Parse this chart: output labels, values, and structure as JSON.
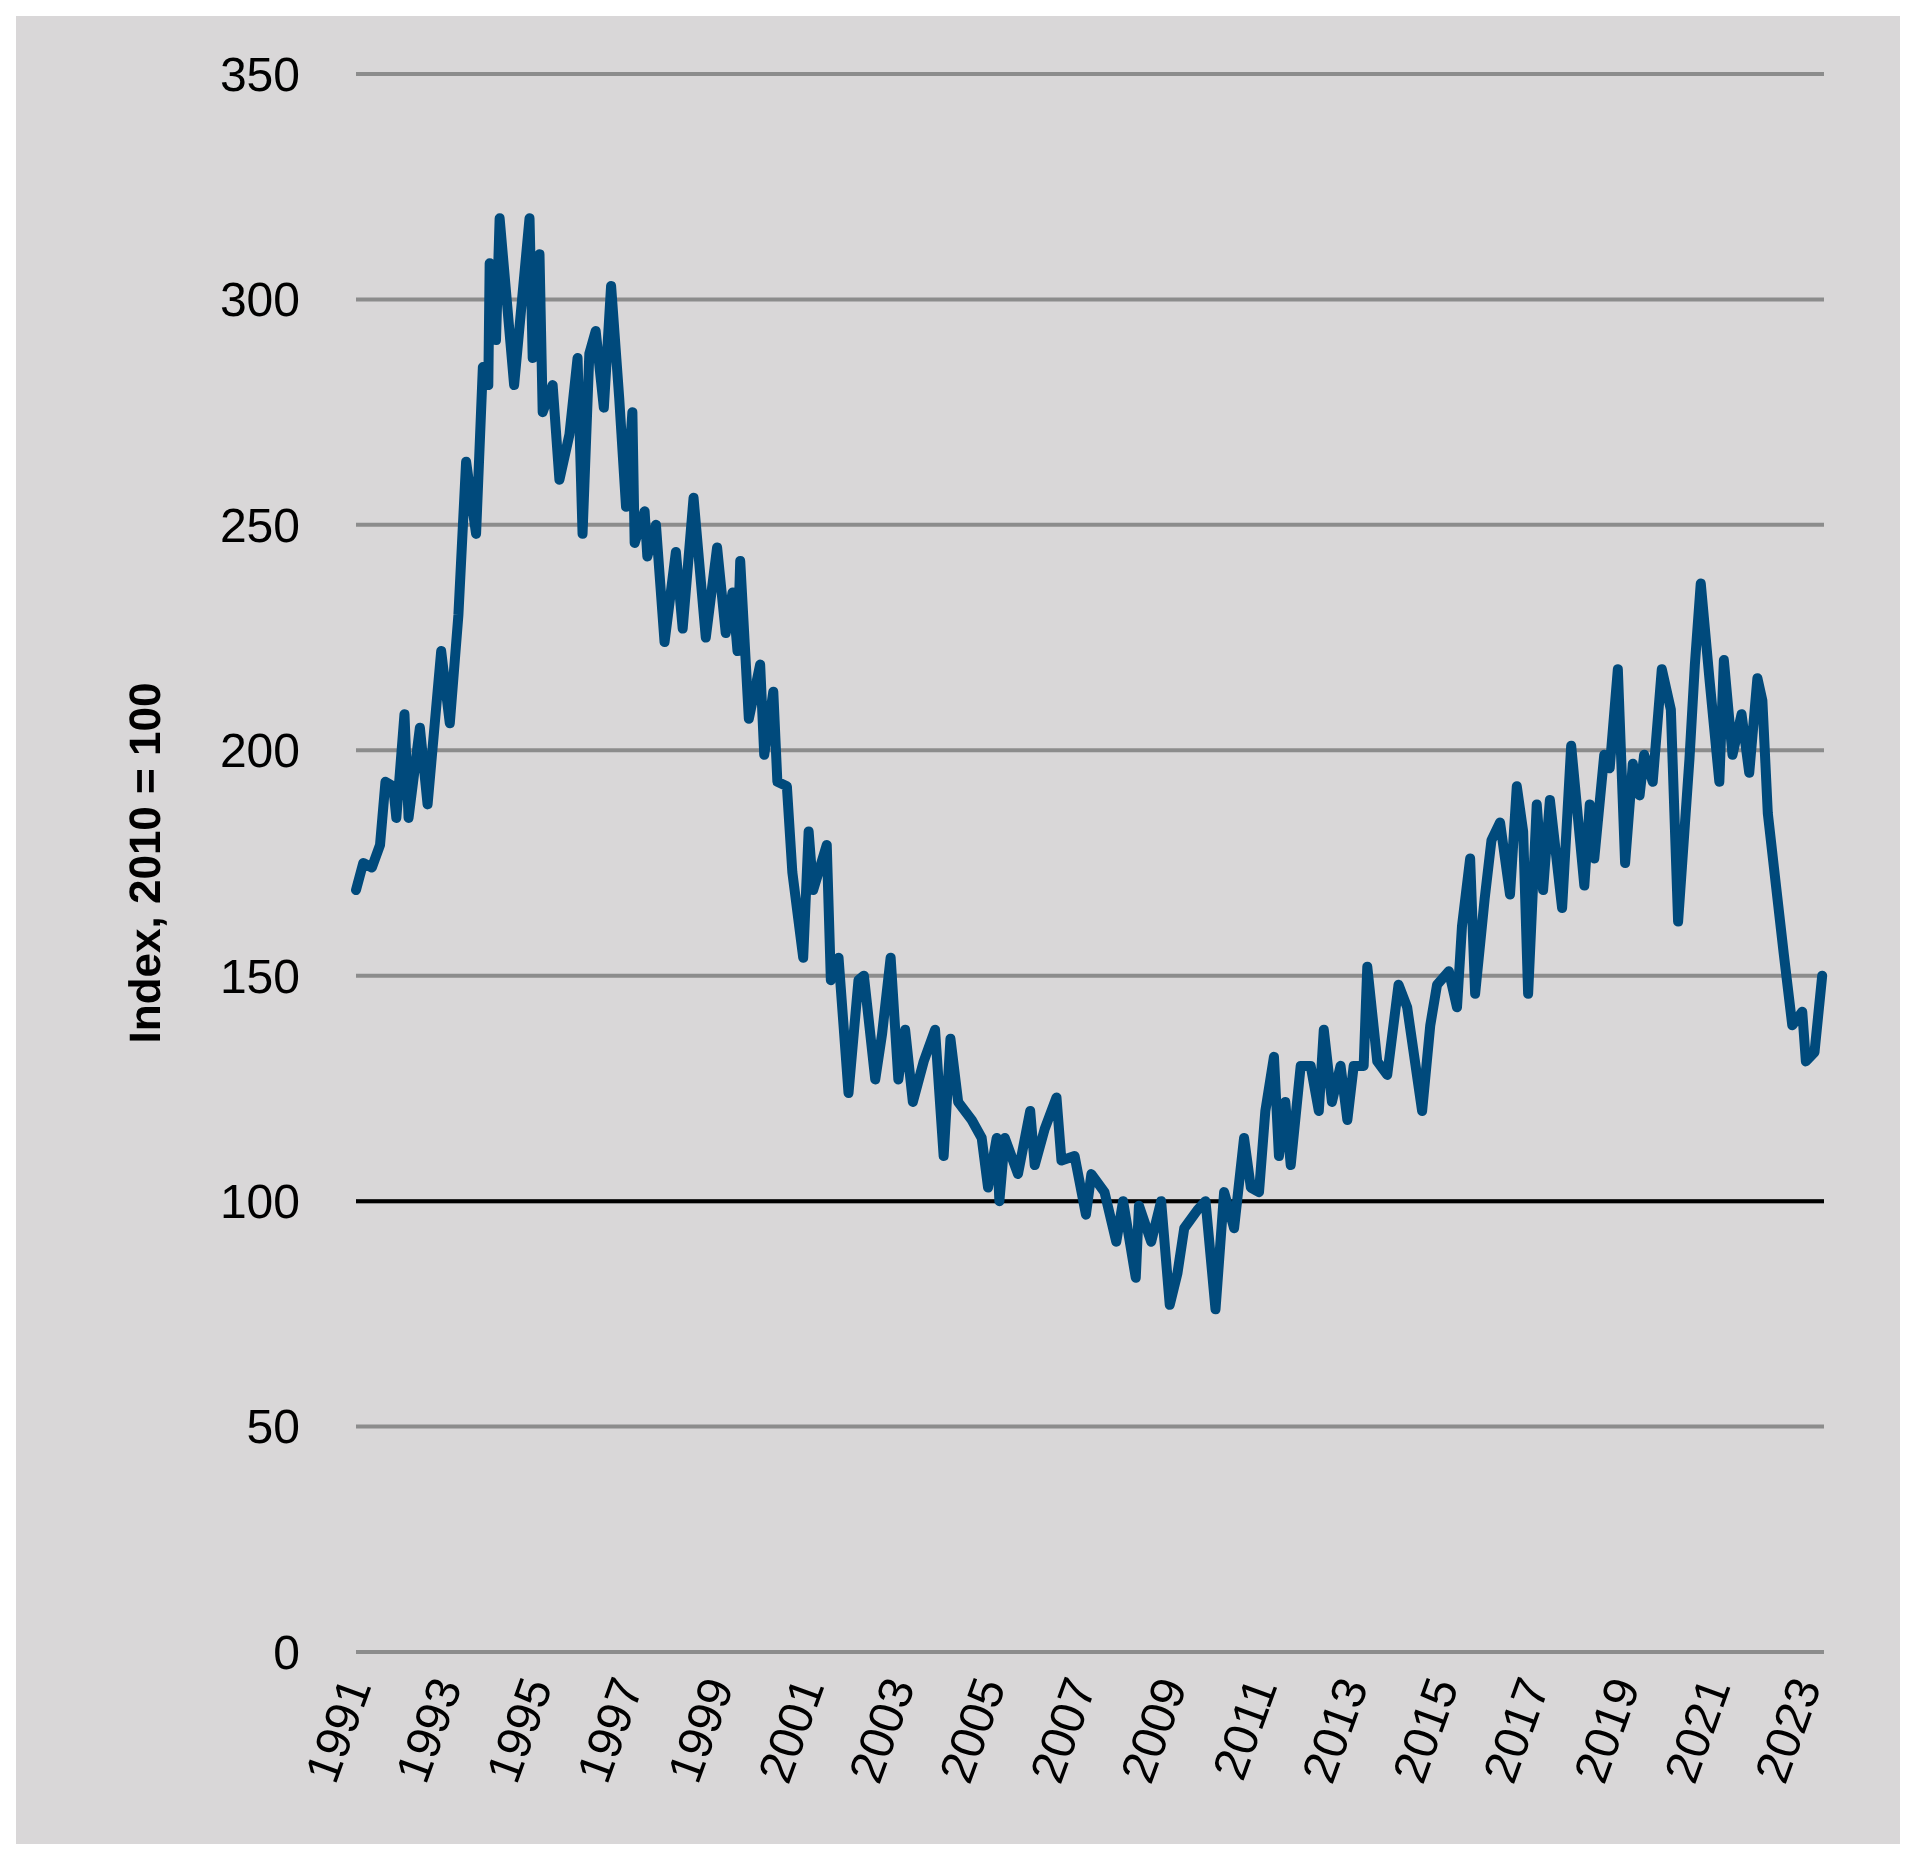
{
  "chart_data": {
    "type": "line",
    "ylabel": "Index, 2010 = 100",
    "xlim": [
      1991,
      2023.4
    ],
    "xticks": [
      1991,
      1993,
      1995,
      1997,
      1999,
      2001,
      2003,
      2005,
      2007,
      2009,
      2011,
      2013,
      2015,
      2017,
      2019,
      2021,
      2023
    ],
    "ylim": [
      0,
      350
    ],
    "yticks": [
      0,
      50,
      100,
      150,
      200,
      250,
      300,
      350
    ],
    "grid": "y",
    "ref_lines": [
      {
        "axis": "y",
        "value": 100,
        "color": "#000000"
      }
    ],
    "series": [
      {
        "color": "#004a7c",
        "x": [
          1991.0,
          1991.16,
          1991.35,
          1991.53,
          1991.65,
          1991.82,
          1991.89,
          1992.07,
          1992.16,
          1992.41,
          1992.58,
          1992.88,
          1993.07,
          1993.26,
          1993.43,
          1993.65,
          1993.8,
          1993.92,
          1993.95,
          1994.09,
          1994.17,
          1994.49,
          1994.83,
          1994.9,
          1995.05,
          1995.12,
          1995.34,
          1995.49,
          1995.71,
          1995.89,
          1996.0,
          1996.15,
          1996.29,
          1996.47,
          1996.63,
          1996.81,
          1996.96,
          1997.1,
          1997.15,
          1997.37,
          1997.43,
          1997.62,
          1997.81,
          1998.06,
          1998.21,
          1998.45,
          1998.72,
          1998.97,
          1999.16,
          1999.31,
          1999.42,
          1999.48,
          1999.67,
          1999.92,
          2000.01,
          2000.21,
          2000.3,
          2000.51,
          2000.63,
          2000.87,
          2000.99,
          2001.09,
          2001.39,
          2001.48,
          2001.65,
          2001.87,
          2002.09,
          2002.21,
          2002.46,
          2002.61,
          2002.8,
          2002.97,
          2003.12,
          2003.29,
          2003.53,
          2003.78,
          2003.97,
          2004.12,
          2004.29,
          2004.59,
          2004.81,
          2004.95,
          2005.14,
          2005.2,
          2005.32,
          2005.61,
          2005.88,
          2005.98,
          2006.2,
          2006.46,
          2006.57,
          2006.86,
          2007.11,
          2007.23,
          2007.52,
          2007.78,
          2007.93,
          2008.21,
          2008.28,
          2008.55,
          2008.77,
          2008.96,
          2009.13,
          2009.28,
          2009.57,
          2009.75,
          2009.97,
          2010.16,
          2010.38,
          2010.6,
          2010.75,
          2010.93,
          2011.07,
          2011.26,
          2011.37,
          2011.51,
          2011.63,
          2011.85,
          2012.07,
          2012.25,
          2012.36,
          2012.54,
          2012.73,
          2012.88,
          2013.02,
          2013.24,
          2013.32,
          2013.54,
          2013.76,
          2014.01,
          2014.2,
          2014.53,
          2014.71,
          2014.86,
          2015.12,
          2015.3,
          2015.41,
          2015.59,
          2015.7,
          2015.91,
          2016.06,
          2016.25,
          2016.47,
          2016.62,
          2016.76,
          2016.87,
          2017.06,
          2017.2,
          2017.35,
          2017.62,
          2017.82,
          2018.11,
          2018.23,
          2018.33,
          2018.55,
          2018.67,
          2018.85,
          2019.01,
          2019.18,
          2019.33,
          2019.43,
          2019.62,
          2019.82,
          2020.02,
          2020.18,
          2020.43,
          2020.55,
          2020.68,
          2020.87,
          2021.09,
          2021.19,
          2021.38,
          2021.58,
          2021.75,
          2021.93,
          2022.04,
          2022.16,
          2022.34,
          2022.51,
          2022.7,
          2022.92,
          2023.0,
          2023.19,
          2023.36
        ],
        "values": [
          169,
          175,
          174,
          179,
          193,
          192,
          185,
          208,
          185,
          205,
          188,
          222,
          206,
          230,
          264,
          248,
          285,
          281,
          308,
          291,
          318,
          281,
          318,
          287,
          310,
          275,
          281,
          260,
          270,
          287,
          248,
          288,
          293,
          276,
          303,
          278,
          254,
          275,
          246,
          253,
          243,
          250,
          224,
          244,
          227,
          256,
          225,
          245,
          226,
          235,
          222,
          242,
          207,
          219,
          199,
          213,
          193,
          192,
          173,
          154,
          182,
          169,
          179,
          149,
          154,
          124,
          149,
          150,
          127,
          137,
          154,
          127,
          138,
          122,
          131,
          138,
          110,
          136,
          122,
          118,
          114,
          103,
          114,
          100,
          114,
          106,
          120,
          108,
          116,
          123,
          109,
          110,
          97,
          106,
          102,
          91,
          100,
          83,
          99,
          91,
          100,
          77,
          84,
          94,
          98,
          100,
          76,
          102,
          94,
          114,
          103,
          102,
          120,
          132,
          110,
          122,
          108,
          130,
          130,
          120,
          138,
          122,
          130,
          118,
          130,
          130,
          152,
          131,
          128,
          148,
          143,
          120,
          139,
          148,
          151,
          143,
          161,
          176,
          146,
          167,
          180,
          184,
          168,
          192,
          182,
          146,
          188,
          169,
          189,
          165,
          201,
          170,
          188,
          176,
          199,
          196,
          218,
          175,
          197,
          190,
          199,
          193,
          218,
          209,
          162,
          198,
          219,
          237,
          216,
          193,
          220,
          199,
          208,
          195,
          216,
          211,
          186,
          170,
          155,
          139,
          142,
          131,
          133,
          150
        ]
      }
    ]
  }
}
